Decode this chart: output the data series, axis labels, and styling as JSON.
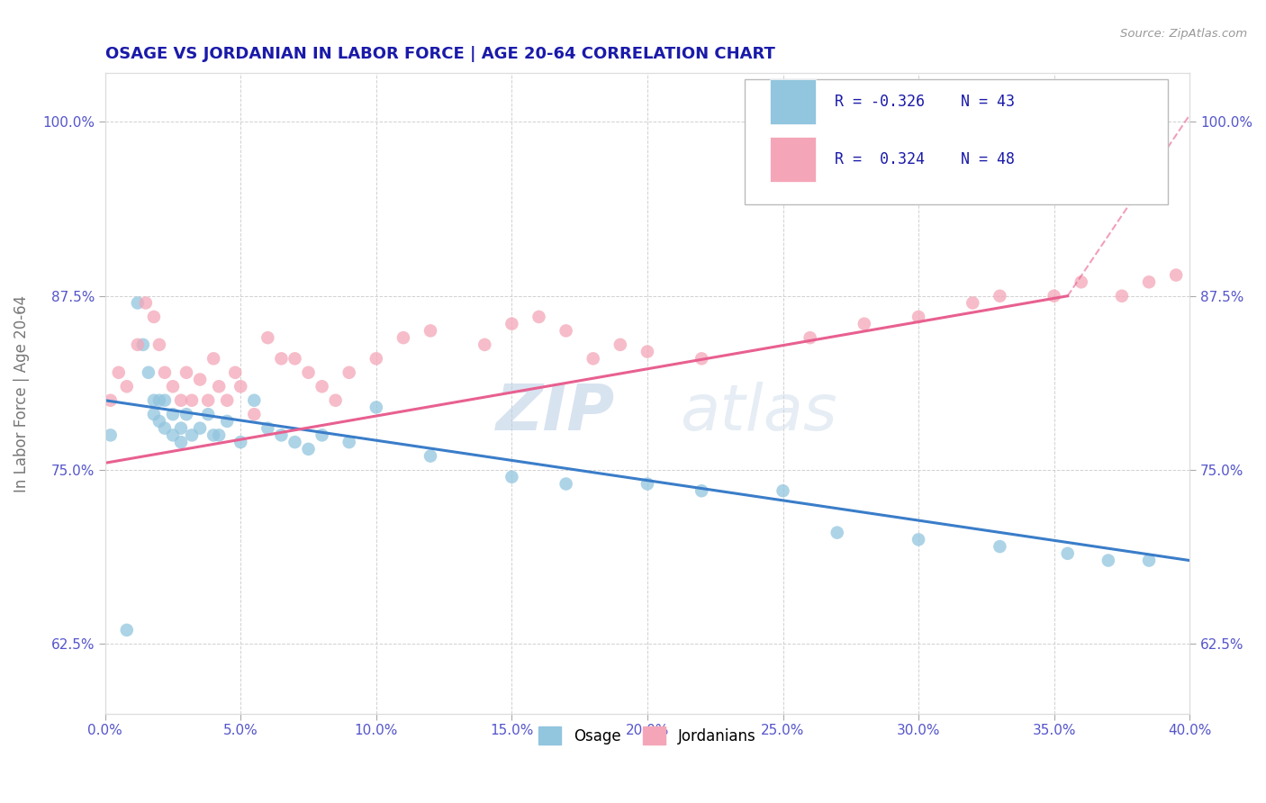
{
  "title": "OSAGE VS JORDANIAN IN LABOR FORCE | AGE 20-64 CORRELATION CHART",
  "source_text": "Source: ZipAtlas.com",
  "ylabel": "In Labor Force | Age 20-64",
  "xlim": [
    0.0,
    0.4
  ],
  "ylim": [
    0.575,
    1.035
  ],
  "xticks": [
    0.0,
    0.05,
    0.1,
    0.15,
    0.2,
    0.25,
    0.3,
    0.35,
    0.4
  ],
  "xticklabels": [
    "0.0%",
    "5.0%",
    "10.0%",
    "15.0%",
    "20.0%",
    "25.0%",
    "30.0%",
    "35.0%",
    "40.0%"
  ],
  "yticks": [
    0.625,
    0.75,
    0.875,
    1.0
  ],
  "yticklabels": [
    "62.5%",
    "75.0%",
    "87.5%",
    "100.0%"
  ],
  "watermark_zip": "ZIP",
  "watermark_atlas": "atlas",
  "legend_R1": "R = -0.326",
  "legend_N1": "N = 43",
  "legend_R2": "R =  0.324",
  "legend_N2": "N = 48",
  "legend_label1": "Osage",
  "legend_label2": "Jordanians",
  "blue_color": "#92c5de",
  "pink_color": "#f4a6b8",
  "blue_line_color": "#3a7dc9",
  "pink_line_color": "#e86090",
  "title_color": "#1a1aaa",
  "axis_label_color": "#777777",
  "tick_color": "#5555cc",
  "background_color": "#ffffff",
  "osage_x": [
    0.002,
    0.008,
    0.012,
    0.014,
    0.016,
    0.018,
    0.018,
    0.02,
    0.02,
    0.022,
    0.022,
    0.025,
    0.025,
    0.028,
    0.028,
    0.03,
    0.032,
    0.035,
    0.038,
    0.04,
    0.042,
    0.045,
    0.05,
    0.055,
    0.06,
    0.065,
    0.07,
    0.075,
    0.08,
    0.09,
    0.1,
    0.12,
    0.15,
    0.17,
    0.2,
    0.22,
    0.25,
    0.27,
    0.3,
    0.33,
    0.355,
    0.37,
    0.385
  ],
  "osage_y": [
    0.775,
    0.635,
    0.87,
    0.84,
    0.82,
    0.8,
    0.79,
    0.8,
    0.785,
    0.8,
    0.78,
    0.79,
    0.775,
    0.78,
    0.77,
    0.79,
    0.775,
    0.78,
    0.79,
    0.775,
    0.775,
    0.785,
    0.77,
    0.8,
    0.78,
    0.775,
    0.77,
    0.765,
    0.775,
    0.77,
    0.795,
    0.76,
    0.745,
    0.74,
    0.74,
    0.735,
    0.735,
    0.705,
    0.7,
    0.695,
    0.69,
    0.685,
    0.685
  ],
  "jordan_x": [
    0.002,
    0.005,
    0.008,
    0.012,
    0.015,
    0.018,
    0.02,
    0.022,
    0.025,
    0.028,
    0.03,
    0.032,
    0.035,
    0.038,
    0.04,
    0.042,
    0.045,
    0.048,
    0.05,
    0.055,
    0.06,
    0.065,
    0.07,
    0.075,
    0.08,
    0.085,
    0.09,
    0.1,
    0.11,
    0.12,
    0.14,
    0.15,
    0.16,
    0.17,
    0.18,
    0.19,
    0.2,
    0.22,
    0.26,
    0.28,
    0.3,
    0.32,
    0.33,
    0.35,
    0.36,
    0.375,
    0.385,
    0.395
  ],
  "jordan_y": [
    0.8,
    0.82,
    0.81,
    0.84,
    0.87,
    0.86,
    0.84,
    0.82,
    0.81,
    0.8,
    0.82,
    0.8,
    0.815,
    0.8,
    0.83,
    0.81,
    0.8,
    0.82,
    0.81,
    0.79,
    0.845,
    0.83,
    0.83,
    0.82,
    0.81,
    0.8,
    0.82,
    0.83,
    0.845,
    0.85,
    0.84,
    0.855,
    0.86,
    0.85,
    0.83,
    0.84,
    0.835,
    0.83,
    0.845,
    0.855,
    0.86,
    0.87,
    0.875,
    0.875,
    0.885,
    0.875,
    0.885,
    0.89
  ],
  "blue_trend_x": [
    0.0,
    0.4
  ],
  "blue_trend_y": [
    0.8,
    0.685
  ],
  "pink_trend_x": [
    0.0,
    0.355
  ],
  "pink_trend_y": [
    0.755,
    0.875
  ]
}
